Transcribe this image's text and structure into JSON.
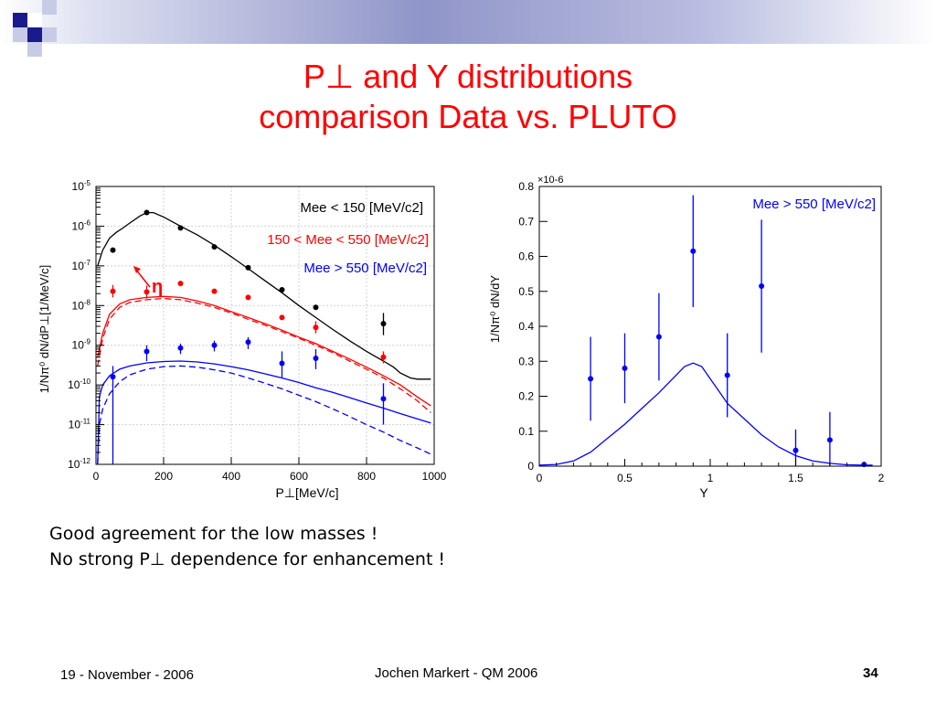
{
  "slide": {
    "title_line1": "P⊥ and Y distributions",
    "title_line2": "comparison Data vs. PLUTO",
    "title_color": "#ff0000",
    "notes": [
      "Good agreement for the low masses !",
      "No strong P⊥ dependence for enhancement !"
    ],
    "footer_date": "19 - November - 2006",
    "footer_author": "Jochen Markert - QM 2006",
    "footer_page": "34"
  },
  "chart_data": [
    {
      "type": "scatter",
      "xlabel": "P⊥[MeV/c]",
      "ylabel": "1/Nπ⁰ dN/dP⊥[1/MeV/c]",
      "xlim": [
        0,
        1000
      ],
      "ylim": [
        1e-12,
        1e-05
      ],
      "yscale": "log",
      "x_ticks": [
        "0",
        "200",
        "400",
        "600",
        "800",
        "1000"
      ],
      "y_ticks": [
        "10-12",
        "10-11",
        "10-10",
        "10-9",
        "10-8",
        "10-7",
        "10-6",
        "10-5"
      ],
      "legend_placement": "top-right",
      "annotation": "η",
      "series": [
        {
          "name": "Mee < 150 [MeV/c2]",
          "color": "#000000",
          "x": [
            50,
            150,
            250,
            350,
            450,
            550,
            650,
            850
          ],
          "y": [
            2.5e-07,
            2.2e-06,
            9e-07,
            3e-07,
            9e-08,
            2.5e-08,
            9e-09,
            3.5e-09
          ],
          "yerr_lo": [
            2.5e-07,
            2.2e-06,
            9e-07,
            3e-07,
            9e-08,
            2.5e-08,
            9e-09,
            1.8e-09
          ],
          "yerr_hi": [
            2.5e-07,
            2.2e-06,
            9e-07,
            3e-07,
            9e-08,
            2.5e-08,
            9e-09,
            6.5e-09
          ],
          "model_x": [
            5,
            20,
            40,
            60,
            80,
            100,
            130,
            150,
            170,
            200,
            250,
            300,
            350,
            400,
            450,
            500,
            550,
            600,
            650,
            700,
            750,
            800,
            850,
            880,
            900,
            930,
            950,
            990
          ],
          "model_y": [
            1e-07,
            2.5e-07,
            5e-07,
            7e-07,
            9e-07,
            1.2e-06,
            1.8e-06,
            2.2e-06,
            2.2e-06,
            1.7e-06,
            1e-06,
            6e-07,
            3.3e-07,
            1.7e-07,
            8.5e-08,
            4.2e-08,
            2.1e-08,
            1e-08,
            5e-09,
            2.5e-09,
            1.3e-09,
            7e-10,
            4e-10,
            2.8e-10,
            2e-10,
            1.5e-10,
            1.4e-10,
            1.4e-10
          ]
        },
        {
          "name": "150 < Mee < 550 [MeV/c2]",
          "color": "#ff0000",
          "x": [
            50,
            150,
            250,
            350,
            450,
            550,
            650,
            850
          ],
          "y": [
            2.3e-08,
            2.2e-08,
            3.6e-08,
            2.3e-08,
            1.6e-08,
            5e-09,
            2.8e-09,
            5e-10
          ],
          "yerr_lo": [
            1.6e-08,
            1.5e-08,
            3.6e-08,
            2.3e-08,
            1.6e-08,
            5e-09,
            2e-09,
            3.5e-10
          ],
          "yerr_hi": [
            3.3e-08,
            3.2e-08,
            3.6e-08,
            2.3e-08,
            1.6e-08,
            5e-09,
            4e-09,
            7e-10
          ],
          "model_x": [
            5,
            20,
            40,
            70,
            100,
            150,
            200,
            250,
            300,
            350,
            400,
            450,
            500,
            550,
            600,
            650,
            700,
            750,
            800,
            850,
            900,
            950,
            990
          ],
          "model_y": [
            5e-10,
            2e-09,
            6e-09,
            1.1e-08,
            1.4e-08,
            1.6e-08,
            1.7e-08,
            1.6e-08,
            1.3e-08,
            1e-08,
            7e-09,
            5e-09,
            3.5e-09,
            2.4e-09,
            1.6e-09,
            1.1e-09,
            7e-10,
            4.5e-10,
            2.8e-10,
            1.7e-10,
            1e-10,
            5e-11,
            3e-11
          ],
          "model2_y": [
            3e-10,
            1.5e-09,
            4.5e-09,
            9e-09,
            1.2e-08,
            1.4e-08,
            1.5e-08,
            1.4e-08,
            1.15e-08,
            9e-09,
            6.5e-09,
            4.5e-09,
            3.2e-09,
            2.2e-09,
            1.5e-09,
            1e-09,
            6.5e-10,
            4e-10,
            2.5e-10,
            1.5e-10,
            8e-11,
            4e-11,
            2e-11
          ]
        },
        {
          "name": "Mee > 550 [MeV/c2]",
          "color": "#0000ff",
          "x": [
            50,
            150,
            250,
            350,
            450,
            550,
            650,
            850
          ],
          "y": [
            1.6e-10,
            7e-10,
            8.5e-10,
            1e-09,
            1.2e-09,
            3.5e-10,
            4.7e-10,
            4.5e-11
          ],
          "yerr_lo": [
            1e-12,
            4e-10,
            6e-10,
            7e-10,
            8e-10,
            1.5e-10,
            2.5e-10,
            1e-11
          ],
          "yerr_hi": [
            3e-10,
            1e-09,
            1.1e-09,
            1.3e-09,
            1.6e-09,
            7e-10,
            8e-10,
            1.1e-10
          ],
          "model_x": [
            5,
            10,
            20,
            40,
            70,
            100,
            150,
            200,
            250,
            300,
            350,
            400,
            450,
            500,
            550,
            600,
            650,
            700,
            750,
            800,
            850,
            900,
            950,
            990
          ],
          "model_y": [
            1e-12,
            5e-11,
            1e-10,
            1.7e-10,
            2.5e-10,
            3e-10,
            3.6e-10,
            3.9e-10,
            4e-10,
            3.8e-10,
            3.4e-10,
            2.9e-10,
            2.4e-10,
            1.9e-10,
            1.5e-10,
            1.15e-10,
            8.5e-11,
            6.5e-11,
            4.8e-11,
            3.5e-11,
            2.6e-11,
            1.9e-11,
            1.4e-11,
            1.1e-11
          ],
          "model2_y": [
            1e-12,
            1e-11,
            2.5e-11,
            6e-11,
            1.2e-10,
            1.8e-10,
            2.5e-10,
            2.9e-10,
            3e-10,
            2.8e-10,
            2.4e-10,
            2e-10,
            1.5e-10,
            1.1e-10,
            8e-11,
            5.5e-11,
            3.8e-11,
            2.5e-11,
            1.6e-11,
            1e-11,
            6.5e-12,
            4e-12,
            2.6e-12,
            1.8e-12
          ]
        }
      ]
    },
    {
      "type": "scatter",
      "xlabel": "Y",
      "ylabel": "1/Nπ⁰ dN/dY",
      "xlim": [
        0,
        2
      ],
      "ylim": [
        0,
        0.8
      ],
      "y_multiplier": "×10-6",
      "x_ticks": [
        "0",
        "0.5",
        "1",
        "1.5",
        "2"
      ],
      "y_ticks": [
        "0",
        "0.1",
        "0.2",
        "0.3",
        "0.4",
        "0.5",
        "0.6",
        "0.7",
        "0.8"
      ],
      "legend_placement": "top-right",
      "series": [
        {
          "name": "Mee > 550 [MeV/c2]",
          "color": "#0000ff",
          "x": [
            0.3,
            0.5,
            0.7,
            0.9,
            1.1,
            1.3,
            1.5,
            1.7,
            1.9
          ],
          "y": [
            0.25,
            0.28,
            0.37,
            0.615,
            0.26,
            0.515,
            0.045,
            0.075,
            0.005
          ],
          "yerr": [
            0.12,
            0.1,
            0.125,
            0.16,
            0.12,
            0.19,
            0.06,
            0.08,
            0.0
          ],
          "model_x": [
            0.0,
            0.1,
            0.2,
            0.3,
            0.4,
            0.5,
            0.6,
            0.7,
            0.8,
            0.85,
            0.9,
            0.95,
            1.0,
            1.05,
            1.1,
            1.2,
            1.3,
            1.4,
            1.5,
            1.6,
            1.7,
            1.8,
            1.9,
            1.95
          ],
          "model_y": [
            0.003,
            0.005,
            0.015,
            0.04,
            0.08,
            0.12,
            0.165,
            0.21,
            0.26,
            0.285,
            0.295,
            0.285,
            0.25,
            0.215,
            0.18,
            0.135,
            0.09,
            0.055,
            0.03,
            0.015,
            0.008,
            0.004,
            0.003,
            0.003
          ]
        }
      ]
    }
  ]
}
